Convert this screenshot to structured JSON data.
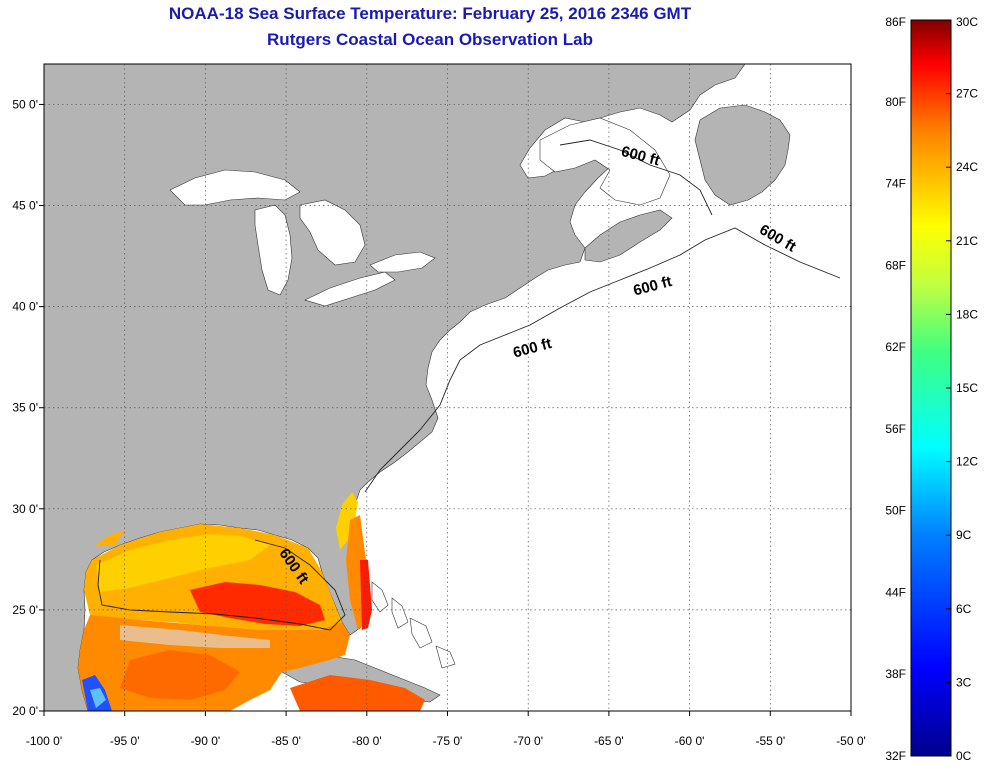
{
  "title": "NOAA-18 Sea Surface Temperature:  February 25, 2016 2346 GMT",
  "subtitle": "Rutgers Coastal Ocean Observation Lab",
  "map": {
    "lon_range": [
      -100,
      -50
    ],
    "lat_range": [
      20,
      52
    ],
    "lon_ticks": [
      "-100 0'",
      "-95 0'",
      "-90 0'",
      "-85 0'",
      "-80 0'",
      "-75 0'",
      "-70 0'",
      "-65 0'",
      "-60 0'",
      "-55 0'",
      "-50 0'"
    ],
    "lat_ticks": [
      "20 0'",
      "25 0'",
      "30 0'",
      "35 0'",
      "40 0'",
      "45 0'",
      "50 0'"
    ],
    "contour_labels": [
      "600 ft",
      "600 ft",
      "600 ft",
      "600 ft",
      "600 ft"
    ],
    "colors": {
      "land": "#b4b4b4",
      "water": "#ffffff",
      "grid": "#555555"
    }
  },
  "colorbar": {
    "fahrenheit": [
      "86F",
      "80F",
      "74F",
      "68F",
      "62F",
      "56F",
      "50F",
      "44F",
      "38F",
      "32F"
    ],
    "celsius": [
      "30C",
      "27C",
      "24C",
      "21C",
      "18C",
      "15C",
      "12C",
      "9C",
      "6C",
      "3C",
      "0C"
    ],
    "range_f": [
      32,
      86
    ],
    "range_c": [
      0,
      30
    ]
  }
}
